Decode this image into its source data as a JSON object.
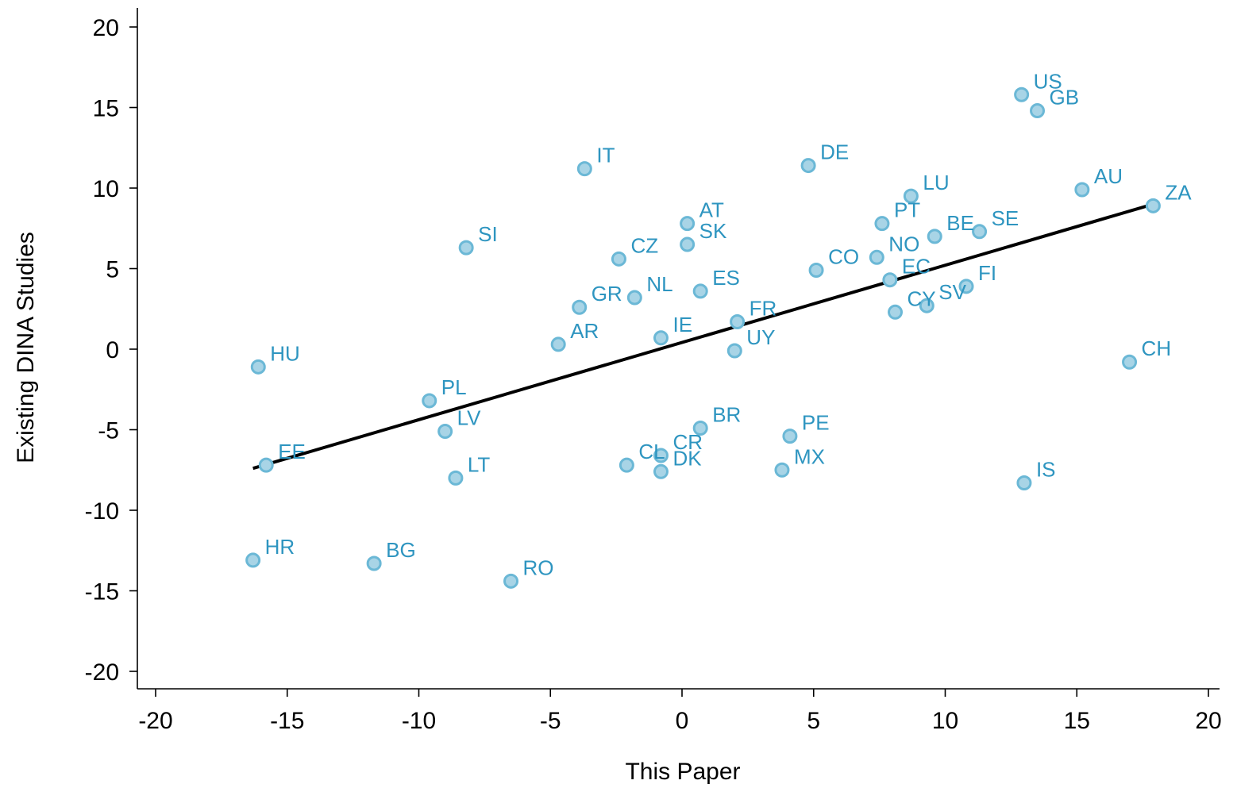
{
  "chart_data": {
    "type": "scatter",
    "title": "",
    "xlabel": "This Paper",
    "ylabel": "Existing DINA Studies",
    "xlim": [
      -20,
      20
    ],
    "ylim": [
      -20,
      20
    ],
    "x_ticks": [
      -20,
      -15,
      -10,
      -5,
      0,
      5,
      10,
      15,
      20
    ],
    "y_ticks": [
      -20,
      -15,
      -10,
      -5,
      0,
      5,
      10,
      15,
      20
    ],
    "grid": false,
    "legend": "none",
    "colors": {
      "point_fill": "#a8d4e6",
      "point_stroke": "#6bb8d6",
      "label": "#2e95c0",
      "fit_line": "#000000"
    },
    "points": [
      {
        "label": "US",
        "x": 12.9,
        "y": 15.8
      },
      {
        "label": "GB",
        "x": 13.5,
        "y": 14.8
      },
      {
        "label": "IT",
        "x": -3.7,
        "y": 11.2
      },
      {
        "label": "DE",
        "x": 4.8,
        "y": 11.4
      },
      {
        "label": "LU",
        "x": 8.7,
        "y": 9.5
      },
      {
        "label": "AU",
        "x": 15.2,
        "y": 9.9
      },
      {
        "label": "ZA",
        "x": 17.9,
        "y": 8.9
      },
      {
        "label": "PT",
        "x": 7.6,
        "y": 7.8
      },
      {
        "label": "BE",
        "x": 9.6,
        "y": 7.0
      },
      {
        "label": "SE",
        "x": 11.3,
        "y": 7.3
      },
      {
        "label": "AT",
        "x": 0.2,
        "y": 7.8
      },
      {
        "label": "SK",
        "x": 0.2,
        "y": 6.5
      },
      {
        "label": "SI",
        "x": -8.2,
        "y": 6.3
      },
      {
        "label": "CZ",
        "x": -2.4,
        "y": 5.6
      },
      {
        "label": "CO",
        "x": 5.1,
        "y": 4.9
      },
      {
        "label": "NO",
        "x": 7.4,
        "y": 5.7
      },
      {
        "label": "EC",
        "x": 7.9,
        "y": 4.3
      },
      {
        "label": "FI",
        "x": 10.8,
        "y": 3.9
      },
      {
        "label": "ES",
        "x": 0.7,
        "y": 3.6
      },
      {
        "label": "NL",
        "x": -1.8,
        "y": 3.2
      },
      {
        "label": "GR",
        "x": -3.9,
        "y": 2.6
      },
      {
        "label": "CY",
        "x": 8.1,
        "y": 2.3
      },
      {
        "label": "SV",
        "x": 9.3,
        "y": 2.7
      },
      {
        "label": "FR",
        "x": 2.1,
        "y": 1.7
      },
      {
        "label": "IE",
        "x": -0.8,
        "y": 0.7
      },
      {
        "label": "AR",
        "x": -4.7,
        "y": 0.3
      },
      {
        "label": "UY",
        "x": 2.0,
        "y": -0.1
      },
      {
        "label": "HU",
        "x": -16.1,
        "y": -1.1
      },
      {
        "label": "CH",
        "x": 17.0,
        "y": -0.8
      },
      {
        "label": "PL",
        "x": -9.6,
        "y": -3.2
      },
      {
        "label": "LV",
        "x": -9.0,
        "y": -5.1
      },
      {
        "label": "BR",
        "x": 0.7,
        "y": -4.9
      },
      {
        "label": "PE",
        "x": 4.1,
        "y": -5.4
      },
      {
        "label": "CR",
        "x": -0.8,
        "y": -6.6
      },
      {
        "label": "CL",
        "x": -2.1,
        "y": -7.2
      },
      {
        "label": "DK",
        "x": -0.8,
        "y": -7.6
      },
      {
        "label": "EE",
        "x": -15.8,
        "y": -7.2
      },
      {
        "label": "MX",
        "x": 3.8,
        "y": -7.5
      },
      {
        "label": "LT",
        "x": -8.6,
        "y": -8.0
      },
      {
        "label": "IS",
        "x": 13.0,
        "y": -8.3
      },
      {
        "label": "HR",
        "x": -16.3,
        "y": -13.1
      },
      {
        "label": "BG",
        "x": -11.7,
        "y": -13.3
      },
      {
        "label": "RO",
        "x": -6.5,
        "y": -14.4
      }
    ],
    "fit_line": {
      "x": [
        -16.3,
        17.9
      ],
      "y": [
        -7.4,
        9.0
      ]
    }
  }
}
